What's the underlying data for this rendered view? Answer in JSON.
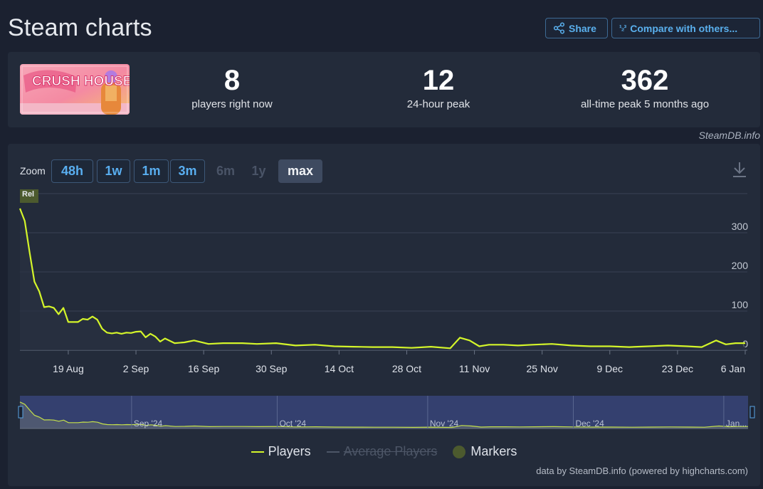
{
  "header": {
    "title": "Steam charts",
    "share_label": "Share",
    "compare_label": "Compare with others..."
  },
  "stats": [
    {
      "value": "8",
      "label": "players right now"
    },
    {
      "value": "12",
      "label": "24-hour peak"
    },
    {
      "value": "362",
      "label": "all-time peak 5 months ago"
    }
  ],
  "game": {
    "name": "CRUSH HOUSE"
  },
  "credit": "SteamDB.info",
  "zoom": {
    "label": "Zoom",
    "options": [
      {
        "label": "48h",
        "state": "active"
      },
      {
        "label": "1w",
        "state": "active"
      },
      {
        "label": "1m",
        "state": "active"
      },
      {
        "label": "3m",
        "state": "active"
      },
      {
        "label": "6m",
        "state": "disabled"
      },
      {
        "label": "1y",
        "state": "disabled"
      },
      {
        "label": "max",
        "state": "selected"
      }
    ]
  },
  "chart_data": {
    "type": "line",
    "series": [
      {
        "name": "Players",
        "color": "#d4f52a",
        "x": [
          "2024-08-09",
          "2024-08-10",
          "2024-08-11",
          "2024-08-12",
          "2024-08-13",
          "2024-08-14",
          "2024-08-15",
          "2024-08-16",
          "2024-08-17",
          "2024-08-18",
          "2024-08-19",
          "2024-08-20",
          "2024-08-21",
          "2024-08-22",
          "2024-08-23",
          "2024-08-24",
          "2024-08-25",
          "2024-08-26",
          "2024-08-27",
          "2024-08-28",
          "2024-08-29",
          "2024-08-30",
          "2024-08-31",
          "2024-09-01",
          "2024-09-02",
          "2024-09-03",
          "2024-09-04",
          "2024-09-05",
          "2024-09-06",
          "2024-09-07",
          "2024-09-08",
          "2024-09-10",
          "2024-09-12",
          "2024-09-14",
          "2024-09-17",
          "2024-09-20",
          "2024-09-24",
          "2024-09-27",
          "2024-10-01",
          "2024-10-05",
          "2024-10-09",
          "2024-10-13",
          "2024-10-17",
          "2024-10-21",
          "2024-10-25",
          "2024-10-29",
          "2024-11-02",
          "2024-11-06",
          "2024-11-08",
          "2024-11-10",
          "2024-11-12",
          "2024-11-14",
          "2024-11-17",
          "2024-11-20",
          "2024-11-23",
          "2024-11-27",
          "2024-12-01",
          "2024-12-05",
          "2024-12-09",
          "2024-12-13",
          "2024-12-17",
          "2024-12-21",
          "2024-12-25",
          "2024-12-28",
          "2024-12-31",
          "2025-01-02",
          "2025-01-04",
          "2025-01-06"
        ],
        "values": [
          362,
          330,
          250,
          175,
          150,
          110,
          112,
          108,
          92,
          108,
          72,
          72,
          72,
          80,
          78,
          86,
          78,
          55,
          45,
          43,
          45,
          42,
          45,
          44,
          47,
          48,
          33,
          42,
          35,
          22,
          30,
          18,
          20,
          25,
          16,
          18,
          18,
          16,
          18,
          12,
          14,
          10,
          9,
          8,
          8,
          6,
          9,
          5,
          32,
          25,
          10,
          14,
          14,
          12,
          14,
          16,
          12,
          10,
          10,
          8,
          10,
          12,
          10,
          8,
          25,
          15,
          18,
          18
        ]
      }
    ],
    "legend": [
      "Players",
      "Average Players",
      "Markers"
    ],
    "x_ticks": [
      "19 Aug",
      "2 Sep",
      "16 Sep",
      "30 Sep",
      "14 Oct",
      "28 Oct",
      "11 Nov",
      "25 Nov",
      "9 Dec",
      "23 Dec",
      "6 Jan"
    ],
    "y_ticks": [
      "0",
      "100",
      "200",
      "300"
    ],
    "ylim": [
      0,
      400
    ],
    "navigator_labels": [
      "Sep '24",
      "Oct '24",
      "Nov '24",
      "Dec '24",
      "Jan..."
    ],
    "marker_label": "Rel",
    "grid": true,
    "legend_placement": "bottom"
  },
  "footer": {
    "powered": "data by SteamDB.info (powered by highcharts.com)"
  }
}
